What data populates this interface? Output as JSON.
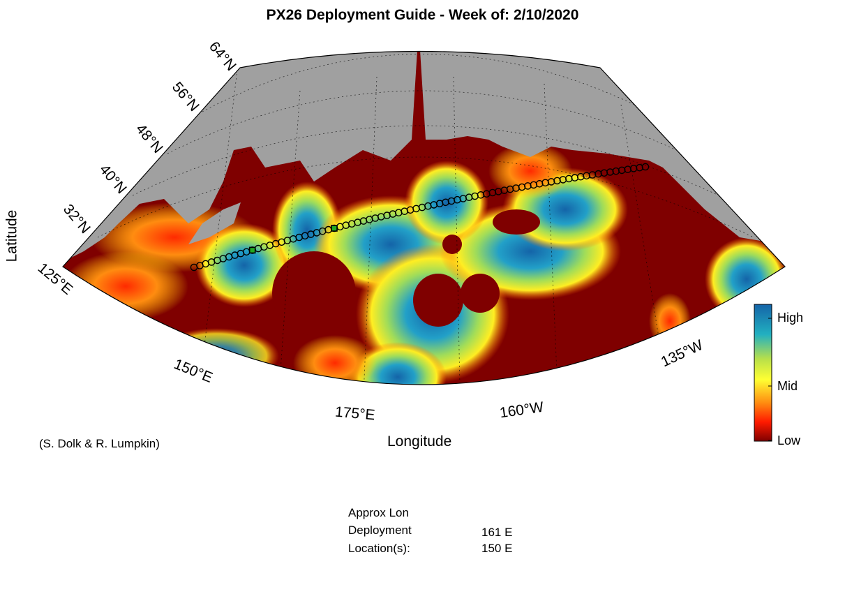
{
  "title": "PX26 Deployment Guide - Week of: 2/10/2020",
  "axes": {
    "xlabel": "Longitude",
    "ylabel": "Latitude",
    "lat_ticks": [
      "32°N",
      "40°N",
      "48°N",
      "56°N",
      "64°N"
    ],
    "lon_ticks": [
      "125°E",
      "150°E",
      "175°E",
      "160°W",
      "135°W"
    ]
  },
  "colorbar": {
    "labels": [
      "High",
      "Mid",
      "Low"
    ],
    "colors": {
      "high": "#1a6fb5",
      "mid": "#ffff44",
      "low": "#7f0000"
    }
  },
  "credit": "(S. Dolk & R. Lumpkin)",
  "deployment": {
    "header_line1": "Approx Lon",
    "header_line2": "Deployment",
    "header_line3": "Location(s):",
    "values": [
      "161 E",
      "150 E"
    ]
  },
  "colors": {
    "land": "#a0a0a0",
    "low": "#7f0000",
    "track_marker": "#ffff33",
    "deploy_marker": "#22aa22"
  }
}
